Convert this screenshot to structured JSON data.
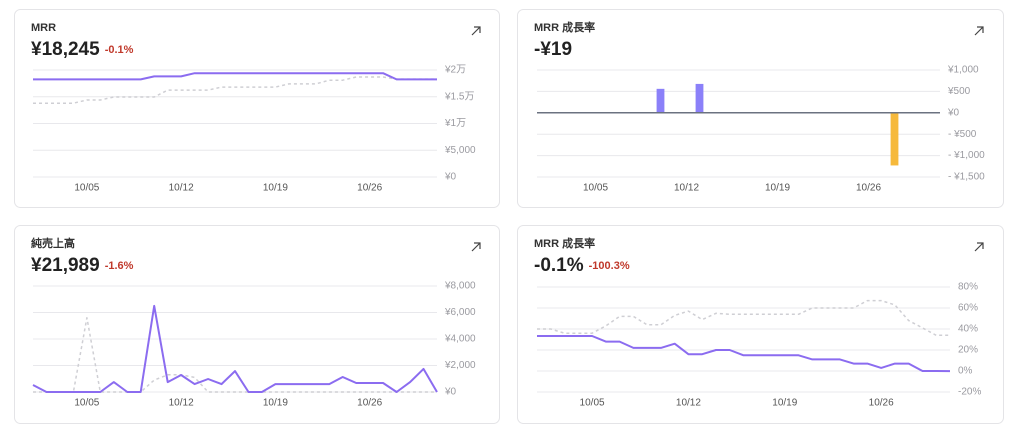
{
  "chart_data": [
    {
      "type": "line",
      "title": "MRR",
      "value": "¥18,245",
      "change": "-0.1%",
      "categories": [
        null,
        null,
        null,
        null,
        "10/05",
        null,
        null,
        null,
        null,
        null,
        null,
        "10/12",
        null,
        null,
        null,
        null,
        null,
        null,
        "10/19",
        null,
        null,
        null,
        null,
        null,
        null,
        "10/26",
        null,
        null,
        null,
        null,
        null
      ],
      "series": [
        {
          "color": "#8b6cf0",
          "style": "solid",
          "values": [
            18245,
            18245,
            18245,
            18245,
            18245,
            18245,
            18245,
            18245,
            18245,
            18800,
            18800,
            18800,
            19400,
            19400,
            19400,
            19400,
            19400,
            19400,
            19400,
            19400,
            19400,
            19400,
            19400,
            19400,
            19400,
            19400,
            19400,
            18245,
            18245,
            18245,
            18245
          ]
        },
        {
          "color": "#cfcfd4",
          "style": "dashed",
          "values": [
            13800,
            13800,
            13800,
            13800,
            14400,
            14400,
            14950,
            14950,
            14950,
            14950,
            16250,
            16250,
            16250,
            16250,
            16800,
            16800,
            16800,
            16800,
            16800,
            17400,
            17400,
            17400,
            18100,
            18100,
            18700,
            18700,
            18700,
            18300,
            18300,
            18300,
            18300
          ]
        }
      ],
      "ylim": [
        0,
        20000
      ],
      "yticks": [
        {
          "value": 0,
          "label": "¥0"
        },
        {
          "value": 5000,
          "label": "¥5,000"
        },
        {
          "value": 10000,
          "label": "¥1万"
        },
        {
          "value": 15000,
          "label": "¥1.5万"
        },
        {
          "value": 20000,
          "label": "¥2万"
        }
      ],
      "grid": true
    },
    {
      "type": "bar",
      "title": "MRR 成長率",
      "value": "-¥19",
      "categories": [
        null,
        null,
        null,
        null,
        "10/05",
        null,
        null,
        null,
        null,
        null,
        null,
        "10/12",
        null,
        null,
        null,
        null,
        null,
        null,
        "10/19",
        null,
        null,
        null,
        null,
        null,
        null,
        "10/26",
        null,
        null,
        null,
        null,
        null
      ],
      "values": [
        0,
        0,
        0,
        0,
        0,
        0,
        0,
        0,
        0,
        560,
        0,
        0,
        675,
        0,
        0,
        0,
        0,
        0,
        0,
        0,
        0,
        0,
        0,
        0,
        0,
        0,
        0,
        -1230,
        0,
        0,
        0
      ],
      "color": "#8b80f9",
      "negative_color": "#f6b93b",
      "ylim": [
        -1500,
        1000
      ],
      "yticks": [
        {
          "value": 1000,
          "label": "¥1,000"
        },
        {
          "value": 500,
          "label": "¥500"
        },
        {
          "value": 0,
          "label": "¥0"
        },
        {
          "value": -500,
          "label": "- ¥500"
        },
        {
          "value": -1000,
          "label": "- ¥1,000"
        },
        {
          "value": -1500,
          "label": "- ¥1,500"
        }
      ],
      "grid": true
    },
    {
      "type": "line",
      "title": "純売上高",
      "value": "¥21,989",
      "change": "-1.6%",
      "categories": [
        null,
        null,
        null,
        null,
        "10/05",
        null,
        null,
        null,
        null,
        null,
        null,
        "10/12",
        null,
        null,
        null,
        null,
        null,
        null,
        "10/19",
        null,
        null,
        null,
        null,
        null,
        null,
        "10/26",
        null,
        null,
        null,
        null,
        null
      ],
      "series": [
        {
          "color": "#8b6cf0",
          "style": "solid",
          "values": [
            530,
            0,
            0,
            0,
            0,
            0,
            750,
            0,
            0,
            6500,
            750,
            1280,
            600,
            980,
            600,
            1580,
            0,
            0,
            600,
            600,
            600,
            600,
            600,
            1130,
            680,
            680,
            680,
            0,
            750,
            1740,
            0
          ]
        },
        {
          "color": "#cfcfd4",
          "style": "dashed",
          "values": [
            0,
            0,
            0,
            0,
            5600,
            0,
            0,
            0,
            0,
            900,
            1300,
            1300,
            1100,
            0,
            0,
            0,
            0,
            0,
            0,
            0,
            0,
            0,
            0,
            0,
            0,
            0,
            0,
            0,
            0,
            0,
            0
          ]
        }
      ],
      "ylim": [
        0,
        8000
      ],
      "yticks": [
        {
          "value": 0,
          "label": "¥0"
        },
        {
          "value": 2000,
          "label": "¥2,000"
        },
        {
          "value": 4000,
          "label": "¥4,000"
        },
        {
          "value": 6000,
          "label": "¥6,000"
        },
        {
          "value": 8000,
          "label": "¥8,000"
        }
      ],
      "grid": true
    },
    {
      "type": "line",
      "title": "MRR 成長率",
      "value": "-0.1%",
      "change": "-100.3%",
      "categories": [
        null,
        null,
        null,
        null,
        "10/05",
        null,
        null,
        null,
        null,
        null,
        null,
        "10/12",
        null,
        null,
        null,
        null,
        null,
        null,
        "10/19",
        null,
        null,
        null,
        null,
        null,
        null,
        "10/26",
        null,
        null,
        null,
        null,
        null
      ],
      "series": [
        {
          "color": "#8b6cf0",
          "style": "solid",
          "values": [
            33.3,
            33.3,
            33.3,
            33.3,
            33.3,
            28,
            28,
            22,
            22,
            22,
            26,
            16,
            16,
            20,
            20,
            15,
            15,
            15,
            15,
            15,
            11,
            11,
            11,
            7,
            7,
            3,
            7,
            7,
            0,
            0,
            -0.1
          ]
        },
        {
          "color": "#cfcfd4",
          "style": "dashed",
          "values": [
            40,
            40,
            36,
            36,
            36,
            43,
            52,
            52,
            44,
            44,
            53,
            57,
            49,
            55,
            54,
            54,
            54,
            54,
            54,
            54,
            60,
            60,
            60,
            60,
            67,
            67,
            63,
            48,
            41,
            34,
            34
          ]
        }
      ],
      "ylim": [
        -20,
        80
      ],
      "yticks": [
        {
          "value": 80,
          "label": "80%"
        },
        {
          "value": 60,
          "label": "60%"
        },
        {
          "value": 40,
          "label": "40%"
        },
        {
          "value": 20,
          "label": "20%"
        },
        {
          "value": 0,
          "label": "0%"
        },
        {
          "value": -20,
          "label": "-20%"
        }
      ],
      "grid": true
    }
  ]
}
